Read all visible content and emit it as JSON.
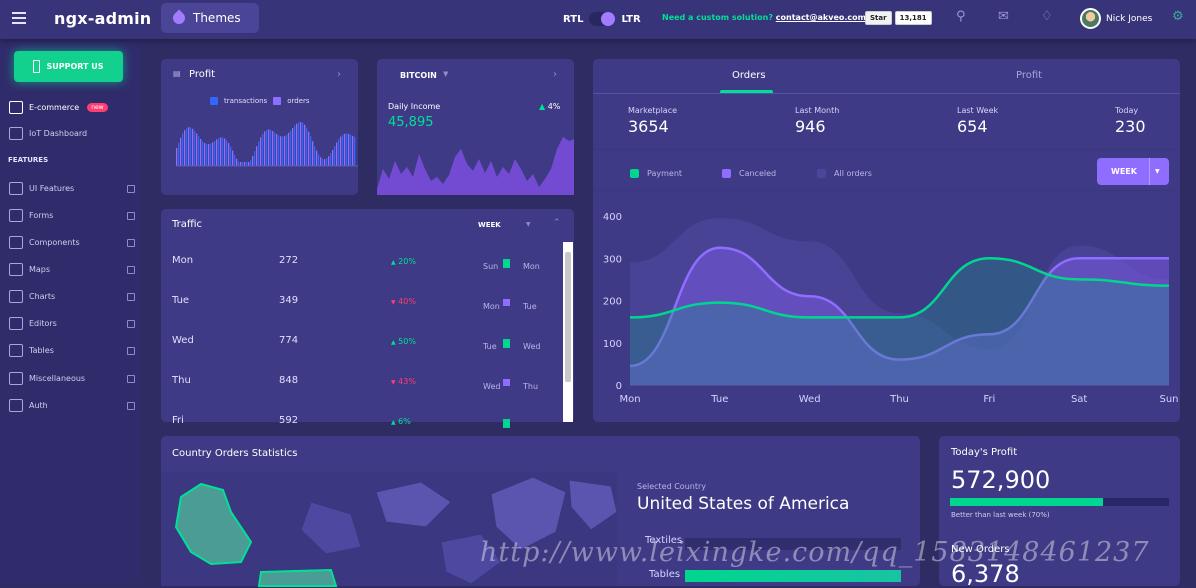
{
  "header": {
    "brand": "ngx-admin",
    "themes": "Themes",
    "rtl": "RTL",
    "ltr": "LTR",
    "custom_text": "Need a custom solution?",
    "custom_link": "contact@akveo.com",
    "star": "Star",
    "star_count": "13,181",
    "user": "Nick Jones"
  },
  "sidebar": {
    "support": "SUPPORT US",
    "items": [
      {
        "label": "E-commerce",
        "badge": "new"
      },
      {
        "label": "IoT Dashboard"
      }
    ],
    "features_title": "FEATURES",
    "features": [
      "UI Features",
      "Forms",
      "Components",
      "Maps",
      "Charts",
      "Editors",
      "Tables",
      "Miscellaneous",
      "Auth"
    ]
  },
  "profit": {
    "title": "Profit",
    "legend_a": "transactions",
    "legend_b": "orders"
  },
  "bitcoin": {
    "title": "BITCOIN",
    "label": "Daily Income",
    "value": "45,895",
    "delta": "4%"
  },
  "traffic": {
    "title": "Traffic",
    "period": "WEEK",
    "rows": [
      {
        "day": "Mon",
        "value": "272",
        "delta": "20%",
        "dir": "up",
        "cmp_a": "Sun",
        "cmp_b": "Mon"
      },
      {
        "day": "Tue",
        "value": "349",
        "delta": "40%",
        "dir": "down",
        "cmp_a": "Mon",
        "cmp_b": "Tue"
      },
      {
        "day": "Wed",
        "value": "774",
        "delta": "50%",
        "dir": "up",
        "cmp_a": "Tue",
        "cmp_b": "Wed"
      },
      {
        "day": "Thu",
        "value": "848",
        "delta": "43%",
        "dir": "down",
        "cmp_a": "Wed",
        "cmp_b": "Thu"
      },
      {
        "day": "Fri",
        "value": "592",
        "delta": "6%",
        "dir": "up",
        "cmp_a": "",
        "cmp_b": ""
      }
    ]
  },
  "orders": {
    "tab_orders": "Orders",
    "tab_profit": "Profit",
    "stats": [
      {
        "label": "Marketplace",
        "value": "3654"
      },
      {
        "label": "Last Month",
        "value": "946"
      },
      {
        "label": "Last Week",
        "value": "654"
      },
      {
        "label": "Today",
        "value": "230"
      }
    ],
    "legend": [
      "Payment",
      "Canceled",
      "All orders"
    ],
    "period": "WEEK"
  },
  "country": {
    "title": "Country Orders Statistics",
    "selected_label": "Selected Country",
    "selected": "United States of America",
    "cat_a": "Textiles",
    "cat_b": "Tables"
  },
  "todays_profit": {
    "title": "Today's Profit",
    "value": "572,900",
    "note": "Better than last week (70%)",
    "progress": 0.7
  },
  "new_orders": {
    "title": "New Orders",
    "value": "6,378"
  },
  "watermark": "http://www.leixingke.com/qq_1583148461237",
  "colors": {
    "accent": "#a27bff",
    "green": "#00e096",
    "red": "#ff3d71",
    "card": "#3e3a85"
  },
  "chart_data": {
    "type": "area",
    "categories": [
      "Mon",
      "Tue",
      "Wed",
      "Thu",
      "Fri",
      "Sat",
      "Sun"
    ],
    "ylim": [
      0,
      400
    ],
    "yticks": [
      0,
      100,
      200,
      300,
      400
    ],
    "series": [
      {
        "name": "All orders",
        "values": [
          290,
          395,
          340,
          170,
          85,
          330,
          250
        ]
      },
      {
        "name": "Canceled",
        "values": [
          45,
          325,
          210,
          60,
          120,
          300,
          300
        ]
      },
      {
        "name": "Payment",
        "values": [
          160,
          195,
          160,
          160,
          300,
          250,
          235
        ]
      }
    ]
  }
}
